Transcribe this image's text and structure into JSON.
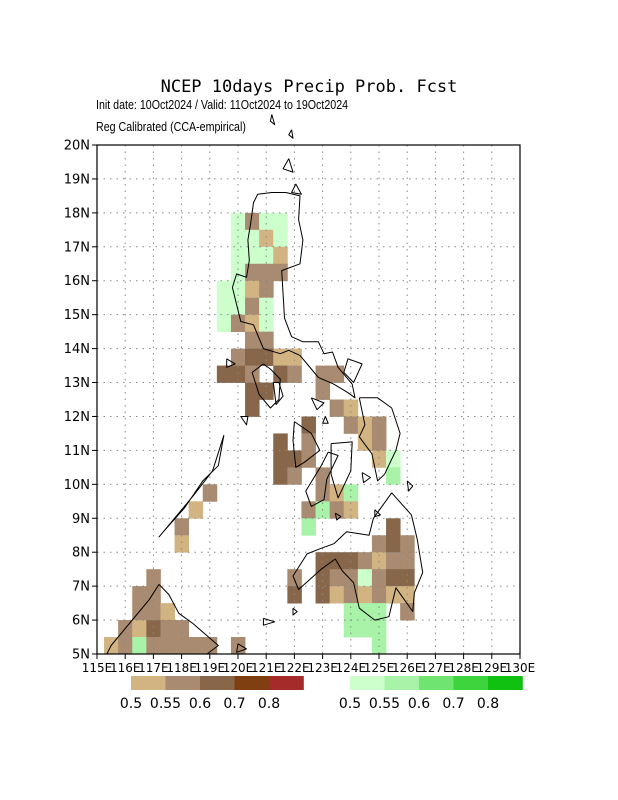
{
  "header": {
    "title": "NCEP 10days Precip Prob. Fcst",
    "subtitle_dates": "Init date: 10Oct2024 / Valid: 11Oct2024 to 19Oct2024",
    "subtitle_method": "Reg Calibrated (CCA-empirical)"
  },
  "map": {
    "lon_labels": [
      "115E",
      "116E",
      "117E",
      "118E",
      "119E",
      "120E",
      "121E",
      "122E",
      "123E",
      "124E",
      "125E",
      "126E",
      "127E",
      "128E",
      "129E",
      "130E"
    ],
    "lat_labels": [
      "5N",
      "6N",
      "7N",
      "8N",
      "9N",
      "10N",
      "11N",
      "12N",
      "13N",
      "14N",
      "15N",
      "16N",
      "17N",
      "18N",
      "19N",
      "20N"
    ],
    "lon_range": [
      115,
      130
    ],
    "lat_range": [
      5,
      20
    ],
    "grid": "dotted",
    "coastline_color": "#000000"
  },
  "legend": {
    "dry": {
      "colors": [
        "#d2b483",
        "#a88b70",
        "#876649",
        "#7f3f10",
        "#a52a2a"
      ],
      "labels": [
        "0.5",
        "0.55",
        "0.6",
        "0.7",
        "0.8"
      ]
    },
    "wet": {
      "colors": [
        "#ccffcc",
        "#a8f3a8",
        "#70e470",
        "#3dd43d",
        "#11c111"
      ],
      "labels": [
        "0.5",
        "0.55",
        "0.6",
        "0.7",
        "0.8"
      ]
    }
  },
  "palette": {
    "t": "#d2b483",
    "m": "#a88b70",
    "d": "#876649",
    "g": "#ccffcc",
    "G": "#a8f3a8",
    "L": "#70e470"
  },
  "cells": [
    [
      "g",
      120.0,
      17.75
    ],
    [
      "m",
      120.5,
      17.75
    ],
    [
      "g",
      121.0,
      17.75
    ],
    [
      "g",
      121.5,
      17.75
    ],
    [
      "g",
      120.0,
      17.25
    ],
    [
      "g",
      120.5,
      17.25
    ],
    [
      "t",
      121.0,
      17.25
    ],
    [
      "g",
      121.5,
      17.25
    ],
    [
      "g",
      120.0,
      16.75
    ],
    [
      "g",
      120.5,
      16.75
    ],
    [
      "g",
      121.0,
      16.75
    ],
    [
      "t",
      121.5,
      16.75
    ],
    [
      "g",
      120.0,
      16.25
    ],
    [
      "m",
      120.5,
      16.25
    ],
    [
      "m",
      121.0,
      16.25
    ],
    [
      "m",
      121.5,
      16.25
    ],
    [
      "g",
      120.0,
      15.75
    ],
    [
      "t",
      120.5,
      15.75
    ],
    [
      "m",
      121.0,
      15.75
    ],
    [
      "g",
      119.5,
      15.75
    ],
    [
      "g",
      119.5,
      15.25
    ],
    [
      "g",
      120.0,
      15.25
    ],
    [
      "m",
      120.5,
      15.25
    ],
    [
      "g",
      121.0,
      15.25
    ],
    [
      "g",
      119.5,
      14.75
    ],
    [
      "m",
      120.0,
      14.75
    ],
    [
      "t",
      120.5,
      14.75
    ],
    [
      "g",
      121.0,
      14.75
    ],
    [
      "m",
      120.5,
      14.25
    ],
    [
      "m",
      121.0,
      14.25
    ],
    [
      "m",
      120.0,
      13.75
    ],
    [
      "d",
      120.5,
      13.75
    ],
    [
      "d",
      121.0,
      13.75
    ],
    [
      "t",
      121.5,
      13.75
    ],
    [
      "t",
      122.0,
      13.75
    ],
    [
      "d",
      119.5,
      13.25
    ],
    [
      "d",
      120.0,
      13.25
    ],
    [
      "m",
      120.5,
      13.25
    ],
    [
      "d",
      121.5,
      13.25
    ],
    [
      "m",
      122.0,
      13.25
    ],
    [
      "m",
      123.0,
      13.25
    ],
    [
      "m",
      123.5,
      13.25
    ],
    [
      "d",
      120.5,
      12.75
    ],
    [
      "d",
      121.0,
      12.75
    ],
    [
      "m",
      123.0,
      12.75
    ],
    [
      "d",
      120.5,
      12.25
    ],
    [
      "m",
      123.5,
      12.25
    ],
    [
      "t",
      124.0,
      12.25
    ],
    [
      "d",
      122.5,
      11.75
    ],
    [
      "m",
      124.0,
      11.75
    ],
    [
      "t",
      124.5,
      11.75
    ],
    [
      "m",
      125.0,
      11.75
    ],
    [
      "d",
      121.5,
      11.25
    ],
    [
      "m",
      122.5,
      11.25
    ],
    [
      "t",
      124.5,
      11.25
    ],
    [
      "m",
      125.0,
      11.25
    ],
    [
      "d",
      121.5,
      10.75
    ],
    [
      "d",
      122.0,
      10.75
    ],
    [
      "m",
      122.5,
      10.75
    ],
    [
      "t",
      125.0,
      10.75
    ],
    [
      "g",
      125.5,
      10.75
    ],
    [
      "d",
      121.5,
      10.25
    ],
    [
      "m",
      122.0,
      10.25
    ],
    [
      "m",
      123.0,
      10.25
    ],
    [
      "G",
      125.5,
      10.25
    ],
    [
      "m",
      123.0,
      9.75
    ],
    [
      "t",
      123.5,
      9.75
    ],
    [
      "G",
      124.0,
      9.75
    ],
    [
      "m",
      122.5,
      9.25
    ],
    [
      "G",
      123.0,
      9.25
    ],
    [
      "m",
      123.5,
      9.25
    ],
    [
      "t",
      124.0,
      9.25
    ],
    [
      "G",
      122.5,
      8.75
    ],
    [
      "d",
      125.5,
      8.75
    ],
    [
      "m",
      125.0,
      8.25
    ],
    [
      "d",
      125.5,
      8.25
    ],
    [
      "m",
      126.0,
      8.25
    ],
    [
      "d",
      123.0,
      7.75
    ],
    [
      "d",
      123.5,
      7.75
    ],
    [
      "d",
      124.0,
      7.75
    ],
    [
      "m",
      124.5,
      7.75
    ],
    [
      "t",
      125.0,
      7.75
    ],
    [
      "m",
      125.5,
      7.75
    ],
    [
      "m",
      126.0,
      7.75
    ],
    [
      "m",
      122.0,
      7.25
    ],
    [
      "d",
      123.0,
      7.25
    ],
    [
      "m",
      123.5,
      7.25
    ],
    [
      "m",
      124.0,
      7.25
    ],
    [
      "g",
      124.5,
      7.25
    ],
    [
      "m",
      125.0,
      7.25
    ],
    [
      "d",
      125.5,
      7.25
    ],
    [
      "d",
      126.0,
      7.25
    ],
    [
      "d",
      122.0,
      6.75
    ],
    [
      "d",
      123.0,
      6.75
    ],
    [
      "t",
      123.5,
      6.75
    ],
    [
      "m",
      124.0,
      6.75
    ],
    [
      "t",
      124.5,
      6.75
    ],
    [
      "m",
      125.0,
      6.75
    ],
    [
      "t",
      125.5,
      6.75
    ],
    [
      "t",
      126.0,
      6.75
    ],
    [
      "G",
      124.0,
      6.25
    ],
    [
      "G",
      124.5,
      6.25
    ],
    [
      "G",
      125.0,
      6.25
    ],
    [
      "m",
      126.0,
      6.25
    ],
    [
      "G",
      124.0,
      5.75
    ],
    [
      "G",
      124.5,
      5.75
    ],
    [
      "G",
      125.0,
      5.75
    ],
    [
      "G",
      125.0,
      5.25
    ],
    [
      "m",
      117.0,
      7.25
    ],
    [
      "m",
      116.5,
      6.75
    ],
    [
      "m",
      117.0,
      6.75
    ],
    [
      "m",
      116.5,
      6.25
    ],
    [
      "m",
      117.0,
      6.25
    ],
    [
      "t",
      117.5,
      6.25
    ],
    [
      "m",
      116.0,
      5.75
    ],
    [
      "t",
      116.5,
      5.75
    ],
    [
      "d",
      117.0,
      5.75
    ],
    [
      "m",
      117.5,
      5.75
    ],
    [
      "m",
      118.0,
      5.75
    ],
    [
      "t",
      115.5,
      5.25
    ],
    [
      "m",
      116.0,
      5.25
    ],
    [
      "G",
      116.5,
      5.25
    ],
    [
      "m",
      117.0,
      5.25
    ],
    [
      "m",
      117.5,
      5.25
    ],
    [
      "m",
      118.0,
      5.25
    ],
    [
      "m",
      118.5,
      5.25
    ],
    [
      "m",
      119.0,
      5.25
    ],
    [
      "m",
      120.0,
      5.25
    ],
    [
      "m",
      119.0,
      9.75
    ],
    [
      "t",
      118.5,
      9.25
    ],
    [
      "m",
      118.0,
      8.75
    ],
    [
      "t",
      118.0,
      8.25
    ]
  ],
  "coastlines": [
    [
      [
        121.7,
        18.6
      ],
      [
        121.2,
        18.6
      ],
      [
        120.7,
        18.55
      ],
      [
        120.55,
        18.3
      ],
      [
        120.45,
        17.7
      ],
      [
        120.35,
        17.2
      ],
      [
        120.4,
        16.6
      ],
      [
        120.3,
        16.1
      ],
      [
        119.95,
        16.2
      ],
      [
        119.8,
        15.8
      ],
      [
        119.95,
        15.3
      ],
      [
        120.1,
        14.8
      ],
      [
        120.55,
        14.7
      ],
      [
        120.7,
        14.4
      ],
      [
        120.9,
        14.0
      ],
      [
        121.5,
        13.85
      ],
      [
        121.8,
        13.95
      ],
      [
        122.2,
        13.8
      ],
      [
        122.6,
        13.4
      ],
      [
        122.85,
        13.15
      ],
      [
        123.4,
        12.95
      ],
      [
        123.9,
        12.7
      ],
      [
        124.15,
        12.55
      ],
      [
        124.05,
        12.95
      ],
      [
        123.55,
        13.45
      ],
      [
        123.35,
        13.9
      ],
      [
        123.05,
        13.85
      ],
      [
        122.85,
        14.2
      ],
      [
        122.3,
        14.2
      ],
      [
        121.9,
        14.35
      ],
      [
        121.65,
        14.9
      ],
      [
        121.6,
        15.6
      ],
      [
        121.55,
        16.3
      ],
      [
        122.2,
        16.5
      ],
      [
        122.3,
        17.2
      ],
      [
        122.15,
        17.8
      ],
      [
        122.2,
        18.5
      ],
      [
        121.7,
        18.6
      ]
    ],
    [
      [
        120.9,
        13.55
      ],
      [
        121.15,
        13.4
      ],
      [
        121.5,
        13.1
      ],
      [
        121.45,
        12.5
      ],
      [
        121.15,
        12.25
      ],
      [
        120.75,
        12.65
      ],
      [
        120.5,
        13.3
      ],
      [
        120.9,
        13.55
      ]
    ],
    [
      [
        124.3,
        12.55
      ],
      [
        124.95,
        12.55
      ],
      [
        125.45,
        12.25
      ],
      [
        125.75,
        11.5
      ],
      [
        125.6,
        11.0
      ],
      [
        125.2,
        10.3
      ],
      [
        124.95,
        10.1
      ],
      [
        124.75,
        10.9
      ],
      [
        124.3,
        11.4
      ],
      [
        124.5,
        11.75
      ],
      [
        124.3,
        12.55
      ]
    ],
    [
      [
        123.2,
        10.95
      ],
      [
        123.55,
        10.85
      ],
      [
        123.15,
        10.15
      ],
      [
        123.05,
        9.55
      ],
      [
        122.6,
        9.35
      ],
      [
        122.4,
        9.8
      ],
      [
        122.95,
        10.55
      ],
      [
        123.2,
        10.95
      ]
    ],
    [
      [
        122.0,
        11.85
      ],
      [
        122.6,
        11.5
      ],
      [
        122.9,
        11.0
      ],
      [
        122.35,
        10.65
      ],
      [
        122.05,
        10.5
      ],
      [
        121.95,
        11.3
      ],
      [
        122.0,
        11.85
      ]
    ],
    [
      [
        123.3,
        11.2
      ],
      [
        124.05,
        11.25
      ],
      [
        124.0,
        10.4
      ],
      [
        123.55,
        9.6
      ],
      [
        123.3,
        10.3
      ],
      [
        123.3,
        11.2
      ]
    ],
    [
      [
        125.45,
        9.75
      ],
      [
        126.15,
        9.1
      ],
      [
        126.35,
        8.4
      ],
      [
        126.55,
        7.4
      ],
      [
        126.25,
        6.8
      ],
      [
        126.2,
        6.25
      ],
      [
        125.6,
        6.95
      ],
      [
        125.35,
        6.1
      ],
      [
        124.85,
        6.0
      ],
      [
        124.3,
        6.35
      ],
      [
        124.1,
        7.1
      ],
      [
        123.7,
        7.45
      ],
      [
        123.45,
        7.8
      ],
      [
        122.95,
        7.5
      ],
      [
        122.15,
        6.9
      ],
      [
        121.95,
        7.3
      ],
      [
        122.45,
        7.95
      ],
      [
        122.9,
        8.1
      ],
      [
        123.4,
        8.25
      ],
      [
        123.85,
        8.6
      ],
      [
        124.65,
        8.5
      ],
      [
        124.8,
        9.0
      ],
      [
        125.45,
        9.75
      ]
    ],
    [
      [
        117.2,
        7.05
      ],
      [
        116.85,
        6.6
      ],
      [
        116.15,
        5.9
      ],
      [
        115.5,
        5.25
      ],
      [
        115.35,
        5.0
      ],
      [
        118.9,
        5.0
      ],
      [
        119.3,
        5.25
      ],
      [
        118.4,
        5.9
      ],
      [
        117.9,
        6.2
      ],
      [
        117.55,
        6.75
      ],
      [
        117.2,
        7.05
      ]
    ],
    [
      [
        119.5,
        11.45
      ],
      [
        119.3,
        10.55
      ],
      [
        118.75,
        10.1
      ],
      [
        118.1,
        9.3
      ],
      [
        117.35,
        8.6
      ],
      [
        117.2,
        8.45
      ],
      [
        117.55,
        8.8
      ],
      [
        118.4,
        9.65
      ],
      [
        119.1,
        10.4
      ],
      [
        119.5,
        11.45
      ]
    ],
    [
      [
        121.25,
        13.0
      ],
      [
        121.45,
        13.0
      ],
      [
        121.6,
        12.6
      ],
      [
        121.35,
        12.35
      ],
      [
        121.25,
        13.0
      ]
    ],
    [
      [
        123.75,
        13.3
      ],
      [
        124.1,
        13.0
      ],
      [
        124.4,
        13.55
      ],
      [
        123.9,
        13.7
      ],
      [
        123.75,
        13.3
      ]
    ],
    [
      [
        122.6,
        12.55
      ],
      [
        123.05,
        12.4
      ],
      [
        122.8,
        12.2
      ],
      [
        122.6,
        12.55
      ]
    ],
    [
      [
        120.1,
        12.0
      ],
      [
        120.35,
        12.0
      ],
      [
        120.3,
        11.75
      ],
      [
        120.1,
        12.0
      ]
    ],
    [
      [
        121.8,
        19.6
      ],
      [
        121.95,
        19.2
      ],
      [
        121.6,
        19.3
      ],
      [
        121.8,
        19.6
      ]
    ],
    [
      [
        122.05,
        18.85
      ],
      [
        122.25,
        18.55
      ],
      [
        121.9,
        18.6
      ],
      [
        122.05,
        18.85
      ]
    ],
    [
      [
        121.9,
        20.45
      ],
      [
        121.95,
        20.2
      ],
      [
        121.8,
        20.3
      ],
      [
        121.9,
        20.45
      ]
    ],
    [
      [
        121.2,
        20.9
      ],
      [
        121.3,
        20.6
      ],
      [
        121.15,
        20.7
      ],
      [
        121.2,
        20.9
      ]
    ],
    [
      [
        123.1,
        12.0
      ],
      [
        123.2,
        11.8
      ],
      [
        123.0,
        11.8
      ],
      [
        123.1,
        12.0
      ]
    ],
    [
      [
        123.45,
        9.15
      ],
      [
        123.65,
        9.05
      ],
      [
        123.5,
        8.95
      ],
      [
        123.45,
        9.15
      ]
    ],
    [
      [
        124.85,
        9.25
      ],
      [
        125.05,
        9.1
      ],
      [
        124.85,
        9.05
      ],
      [
        124.85,
        9.25
      ]
    ],
    [
      [
        124.4,
        10.35
      ],
      [
        124.7,
        10.2
      ],
      [
        124.45,
        10.05
      ],
      [
        124.4,
        10.35
      ]
    ],
    [
      [
        126.0,
        10.1
      ],
      [
        126.2,
        9.95
      ],
      [
        126.05,
        9.8
      ],
      [
        126.0,
        10.1
      ]
    ],
    [
      [
        120.9,
        6.05
      ],
      [
        121.3,
        5.95
      ],
      [
        120.9,
        5.85
      ],
      [
        120.9,
        6.05
      ]
    ],
    [
      [
        120.0,
        5.3
      ],
      [
        120.3,
        5.15
      ],
      [
        119.95,
        5.05
      ],
      [
        120.0,
        5.3
      ]
    ],
    [
      [
        119.6,
        13.7
      ],
      [
        119.9,
        13.55
      ],
      [
        119.6,
        13.45
      ],
      [
        119.6,
        13.7
      ]
    ],
    [
      [
        121.95,
        6.35
      ],
      [
        122.1,
        6.25
      ],
      [
        121.95,
        6.15
      ],
      [
        121.95,
        6.35
      ]
    ]
  ]
}
